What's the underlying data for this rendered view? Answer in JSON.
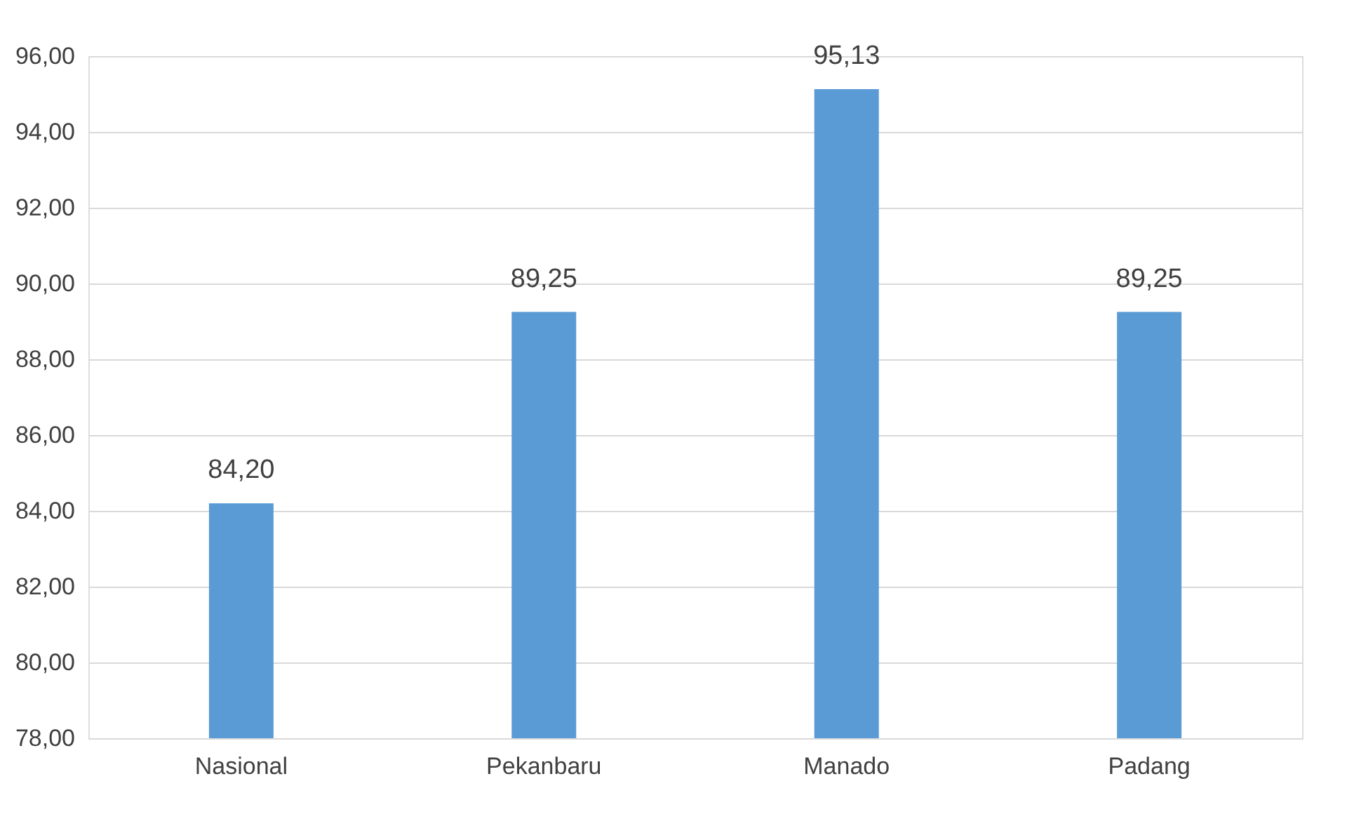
{
  "chart_data": {
    "type": "bar",
    "categories": [
      "Nasional",
      "Pekanbaru",
      "Manado",
      "Padang"
    ],
    "values": [
      84.2,
      89.25,
      95.13,
      89.25
    ],
    "value_labels": [
      "84,20",
      "89,25",
      "95,13",
      "89,25"
    ],
    "color": "#5b9bd5",
    "ylim": [
      78,
      96
    ],
    "yticks": [
      {
        "value": 78,
        "label": "78,00"
      },
      {
        "value": 80,
        "label": "80,00"
      },
      {
        "value": 82,
        "label": "82,00"
      },
      {
        "value": 84,
        "label": "84,00"
      },
      {
        "value": 86,
        "label": "86,00"
      },
      {
        "value": 88,
        "label": "88,00"
      },
      {
        "value": 90,
        "label": "90,00"
      },
      {
        "value": 92,
        "label": "92,00"
      },
      {
        "value": 94,
        "label": "94,00"
      },
      {
        "value": 96,
        "label": "96,00"
      }
    ],
    "grid": "y"
  }
}
